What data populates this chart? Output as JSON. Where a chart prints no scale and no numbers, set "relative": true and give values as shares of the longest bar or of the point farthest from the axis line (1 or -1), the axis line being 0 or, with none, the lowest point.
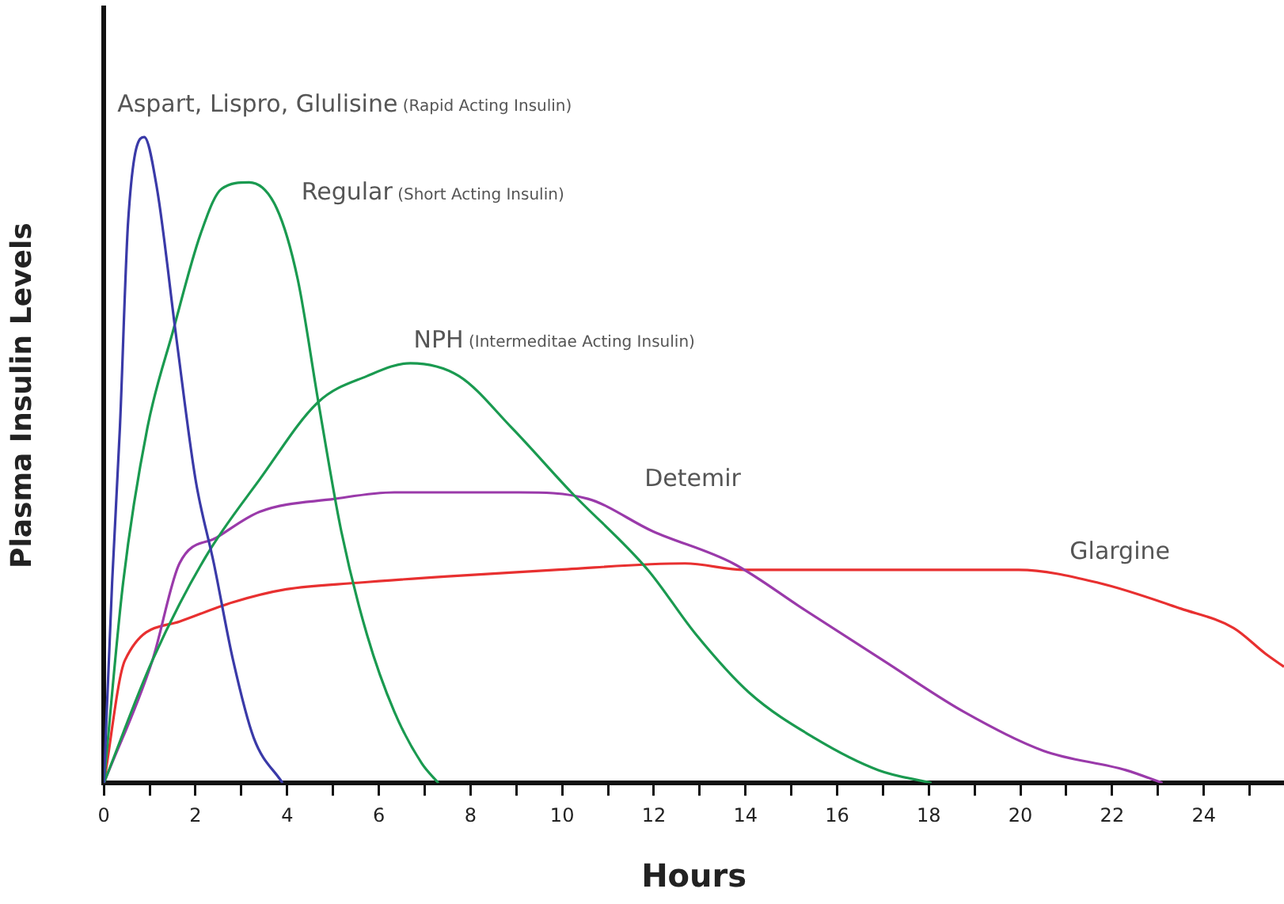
{
  "chart_data": {
    "type": "line",
    "xlabel": "Hours",
    "ylabel": "Plasma Insulin Levels",
    "relative": true,
    "grid": false,
    "legend": false,
    "marker": "none",
    "line_style": "solid",
    "tick_labels": "x",
    "xlim": [
      0,
      25.75
    ],
    "xticks": [
      0,
      {
        "value": 1,
        "label": null
      },
      2,
      {
        "value": 3,
        "label": null
      },
      4,
      {
        "value": 5,
        "label": null
      },
      6,
      {
        "value": 7,
        "label": null
      },
      8,
      {
        "value": 9,
        "label": null
      },
      10,
      {
        "value": 11,
        "label": null
      },
      12,
      {
        "value": 13,
        "label": null
      },
      14,
      {
        "value": 15,
        "label": null
      },
      16,
      {
        "value": 17,
        "label": null
      },
      18,
      {
        "value": 19,
        "label": null
      },
      20,
      {
        "value": 21,
        "label": null
      },
      22,
      {
        "value": 23,
        "label": null
      },
      24,
      {
        "value": 25,
        "label": null
      }
    ],
    "series": [
      {
        "name": "Aspart, Lispro, Glulisine (Rapid Acting Insulin)",
        "color": "#3a3aa8",
        "x": [
          0,
          0.18,
          0.35,
          0.53,
          0.88,
          1.16,
          1.58,
          2.0,
          2.4,
          2.82,
          3.27,
          3.9
        ],
        "values": [
          0,
          0.31,
          0.55,
          0.87,
          1,
          0.92,
          0.69,
          0.47,
          0.34,
          0.19,
          0.07,
          0
        ]
      },
      {
        "name": "Regular (Short Acting Insulin)",
        "color": "#1a9a50",
        "x": [
          0,
          0.42,
          0.95,
          1.51,
          2.11,
          2.57,
          3.17,
          3.77,
          4.23,
          4.68,
          5.18,
          5.74,
          6.34,
          6.94,
          7.3
        ],
        "values": [
          0,
          0.31,
          0.55,
          0.7,
          0.85,
          0.92,
          0.93,
          0.89,
          0.78,
          0.59,
          0.39,
          0.23,
          0.11,
          0.03,
          0
        ]
      },
      {
        "name": "NPH (Intermeditae Acting Insulin)",
        "color": "#1a9a50",
        "x": [
          0,
          1.06,
          2.22,
          3.4,
          4.68,
          5.74,
          6.69,
          7.75,
          8.9,
          10.2,
          11.87,
          12.92,
          14.08,
          15.5,
          16.9,
          18.06
        ],
        "values": [
          0,
          0.19,
          0.35,
          0.47,
          0.59,
          0.63,
          0.65,
          0.63,
          0.55,
          0.45,
          0.33,
          0.23,
          0.14,
          0.07,
          0.02,
          0
        ]
      },
      {
        "name": "Detemir",
        "color": "#9a3aaa",
        "x": [
          0,
          1.06,
          1.65,
          2.46,
          3.4,
          5.04,
          6.34,
          7.5,
          9.05,
          10.56,
          11.97,
          13.73,
          15.25,
          17.0,
          18.77,
          20.5,
          22.3,
          23.1
        ],
        "values": [
          0,
          0.19,
          0.34,
          0.38,
          0.42,
          0.44,
          0.45,
          0.45,
          0.45,
          0.44,
          0.39,
          0.34,
          0.27,
          0.19,
          0.11,
          0.05,
          0.02,
          0
        ]
      },
      {
        "name": "Glargine",
        "color": "#e83030",
        "x": [
          0,
          0.46,
          1.65,
          2.82,
          3.98,
          5.53,
          7.5,
          9.86,
          12.68,
          13.98,
          17.6,
          19.96,
          21.7,
          23.5,
          24.65,
          25.35,
          25.75
        ],
        "values": [
          0,
          0.19,
          0.25,
          0.28,
          0.3,
          0.31,
          0.32,
          0.33,
          0.34,
          0.33,
          0.33,
          0.33,
          0.31,
          0.27,
          0.24,
          0.2,
          0.18
        ]
      }
    ]
  }
}
